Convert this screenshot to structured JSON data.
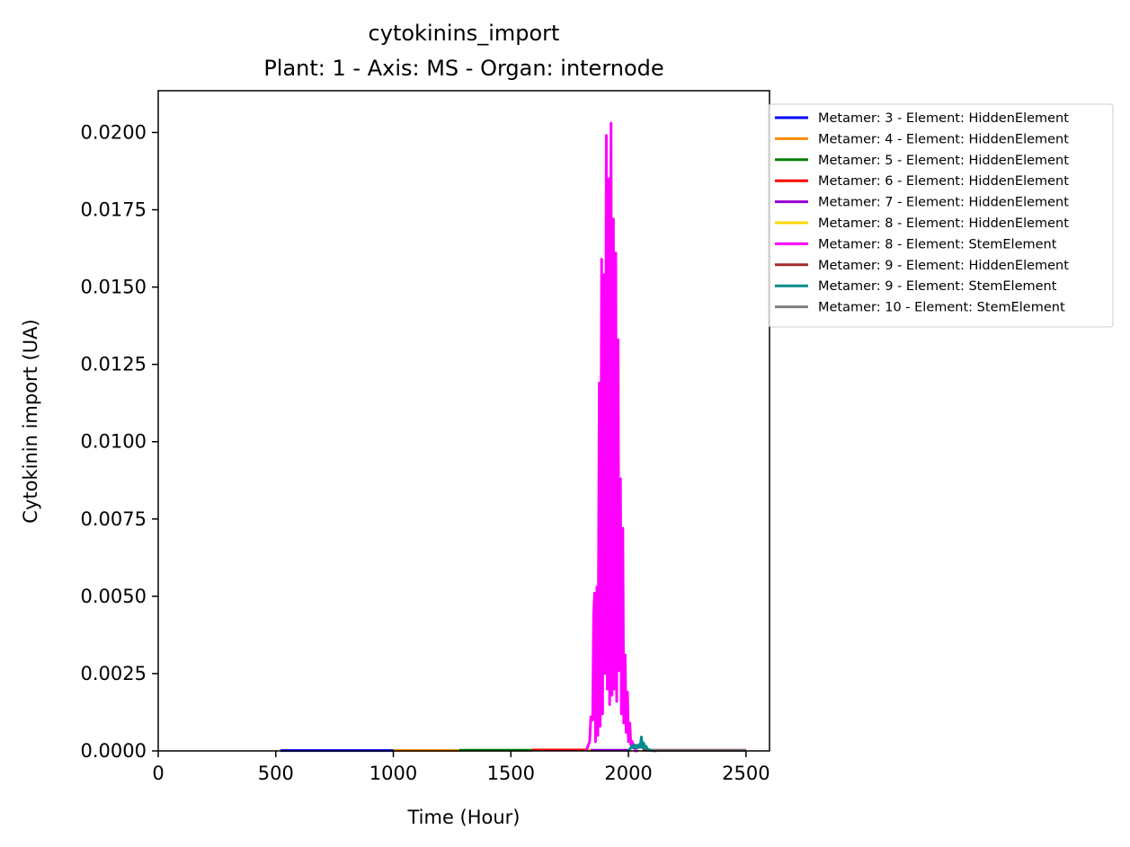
{
  "chart_data": {
    "type": "line",
    "title": "cytokinins_import",
    "subtitle": "Plant: 1 - Axis: MS - Organ: internode",
    "xlabel": "Time (Hour)",
    "ylabel": "Cytokinin import (UA)",
    "xlim": [
      0,
      2600
    ],
    "ylim": [
      0,
      0.02135
    ],
    "xticks": [
      0,
      500,
      1000,
      1500,
      2000,
      2500
    ],
    "yticks": [
      0.0,
      0.0025,
      0.005,
      0.0075,
      0.01,
      0.0125,
      0.015,
      0.0175,
      0.02
    ],
    "ytick_labels": [
      "0.0000",
      "0.0025",
      "0.0050",
      "0.0075",
      "0.0100",
      "0.0125",
      "0.0150",
      "0.0175",
      "0.0200"
    ],
    "legend_position": "outside-right",
    "series": [
      {
        "name": "Metamer: 3 - Element: HiddenElement",
        "color": "#0000ff",
        "x": [
          520,
          1000
        ],
        "y": [
          1e-05,
          1e-05
        ]
      },
      {
        "name": "Metamer: 4 - Element: HiddenElement",
        "color": "#ff8c00",
        "x": [
          1000,
          1280
        ],
        "y": [
          1e-05,
          1e-05
        ]
      },
      {
        "name": "Metamer: 5 - Element: HiddenElement",
        "color": "#008000",
        "x": [
          1280,
          1590
        ],
        "y": [
          2e-05,
          2e-05
        ]
      },
      {
        "name": "Metamer: 6 - Element: HiddenElement",
        "color": "#ff0000",
        "x": [
          1590,
          1830
        ],
        "y": [
          3e-05,
          3e-05
        ]
      },
      {
        "name": "Metamer: 7 - Element: HiddenElement",
        "color": "#9400d3",
        "x": [
          1830,
          2000
        ],
        "y": [
          2e-05,
          2e-05
        ]
      },
      {
        "name": "Metamer: 8 - Element: HiddenElement",
        "color": "#ffd700",
        "x": [
          1820,
          1840
        ],
        "y": [
          2e-05,
          2e-05
        ]
      },
      {
        "name": "Metamer: 8 - Element: StemElement",
        "color": "#ff00ff",
        "x": [
          1820,
          1835,
          1840,
          1848,
          1852,
          1856,
          1860,
          1866,
          1870,
          1876,
          1880,
          1886,
          1890,
          1896,
          1900,
          1906,
          1910,
          1916,
          1920,
          1926,
          1930,
          1936,
          1940,
          1946,
          1950,
          1956,
          1960,
          1966,
          1970,
          1976,
          1980,
          1986,
          1990,
          1996,
          2000,
          2006,
          2010,
          2016,
          2020,
          2026,
          2030,
          2040
        ],
        "y": [
          0.0,
          0.0003,
          0.0011,
          0.001,
          0.0044,
          0.0051,
          0.0003,
          0.0053,
          0.0005,
          0.0119,
          0.0008,
          0.0159,
          0.0012,
          0.0154,
          0.0025,
          0.0199,
          0.002,
          0.0185,
          0.0015,
          0.0203,
          0.0018,
          0.0172,
          0.002,
          0.0161,
          0.0016,
          0.0133,
          0.0026,
          0.0088,
          0.0012,
          0.0072,
          0.0009,
          0.0031,
          0.0006,
          0.0019,
          0.0003,
          0.0009,
          0.0002,
          0.0003,
          0.0001,
          0.0001,
          0.0,
          0.0
        ]
      },
      {
        "name": "Metamer: 9 - Element: HiddenElement",
        "color": "#a52a2a",
        "x": [
          2060,
          2500
        ],
        "y": [
          2e-05,
          2e-05
        ]
      },
      {
        "name": "Metamer: 9 - Element: StemElement",
        "color": "#008b8b",
        "x": [
          2000,
          2010,
          2015,
          2020,
          2025,
          2030,
          2035,
          2040,
          2045,
          2050,
          2055,
          2060,
          2065,
          2070,
          2075,
          2080,
          2090,
          2100,
          2120
        ],
        "y": [
          0.0,
          0.0001,
          0.00015,
          0.0001,
          0.0002,
          0.0001,
          0.00018,
          0.0001,
          0.0002,
          0.00012,
          0.00045,
          0.0001,
          0.00025,
          0.0001,
          0.00015,
          6e-05,
          3e-05,
          1e-05,
          0.0
        ]
      },
      {
        "name": "Metamer: 10 - Element: StemElement",
        "color": "#808080",
        "x": [
          2100,
          2500
        ],
        "y": [
          1e-05,
          1e-05
        ]
      }
    ]
  }
}
